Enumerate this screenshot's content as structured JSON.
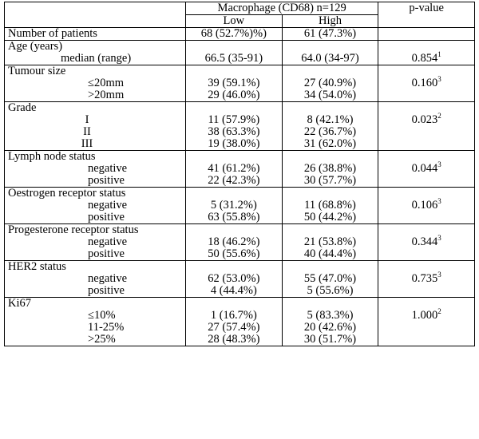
{
  "header": {
    "group_label": "Macrophage (CD68) n=129",
    "col_low": "Low",
    "col_high": "High",
    "col_p": "p-value"
  },
  "rows": {
    "patients": {
      "label": "Number of patients",
      "low": "68 (52.7%)%)",
      "high": "61 (47.3%)"
    },
    "age": {
      "label": "Age (years)",
      "sub": [
        {
          "label": "median (range)",
          "low": "66.5 (35-91)",
          "high": "64.0 (34-97)"
        }
      ],
      "p": "0.854",
      "p_sup": "1"
    },
    "tumour": {
      "label": "Tumour size",
      "sub": [
        {
          "label": "≤20mm",
          "low": "39 (59.1%)",
          "high": "27 (40.9%)"
        },
        {
          "label": ">20mm",
          "low": "29 (46.0%)",
          "high": "34 (54.0%)"
        }
      ],
      "p": "0.160",
      "p_sup": "3"
    },
    "grade": {
      "label": "Grade",
      "sub": [
        {
          "label": "I",
          "low": "11 (57.9%)",
          "high": "8 (42.1%)"
        },
        {
          "label": "II",
          "low": "38 (63.3%)",
          "high": "22 (36.7%)"
        },
        {
          "label": "III",
          "low": "19 (38.0%)",
          "high": "31 (62.0%)"
        }
      ],
      "p": "0.023",
      "p_sup": "2"
    },
    "lymph": {
      "label": "Lymph node status",
      "sub": [
        {
          "label": "negative",
          "low": "41 (61.2%)",
          "high": "26 (38.8%)"
        },
        {
          "label": "positive",
          "low": "22 (42.3%)",
          "high": "30 (57.7%)"
        }
      ],
      "p": "0.044",
      "p_sup": "3"
    },
    "oestrogen": {
      "label": "Oestrogen receptor status",
      "sub": [
        {
          "label": "negative",
          "low": "5 (31.2%)",
          "high": "11 (68.8%)"
        },
        {
          "label": "positive",
          "low": "63 (55.8%)",
          "high": "50 (44.2%)"
        }
      ],
      "p": "0.106",
      "p_sup": "3"
    },
    "progesterone": {
      "label": "Progesterone receptor status",
      "sub": [
        {
          "label": "negative",
          "low": "18 (46.2%)",
          "high": "21 (53.8%)"
        },
        {
          "label": "positive",
          "low": "50 (55.6%)",
          "high": "40 (44.4%)"
        }
      ],
      "p": "0.344",
      "p_sup": "3"
    },
    "her2": {
      "label": "HER2 status",
      "sub": [
        {
          "label": "negative",
          "low": "62 (53.0%)",
          "high": "55 (47.0%)"
        },
        {
          "label": "positive",
          "low": "4 (44.4%)",
          "high": "5 (55.6%)"
        }
      ],
      "p": "0.735",
      "p_sup": "3"
    },
    "ki67": {
      "label": "Ki67",
      "sub": [
        {
          "label": "≤10%",
          "low": "1 (16.7%)",
          "high": "5 (83.3%)"
        },
        {
          "label": "11-25%",
          "low": "27 (57.4%)",
          "high": "20 (42.6%)"
        },
        {
          "label": ">25%",
          "low": "28 (48.3%)",
          "high": "30 (51.7%)"
        }
      ],
      "p": "1.000",
      "p_sup": "2"
    }
  }
}
